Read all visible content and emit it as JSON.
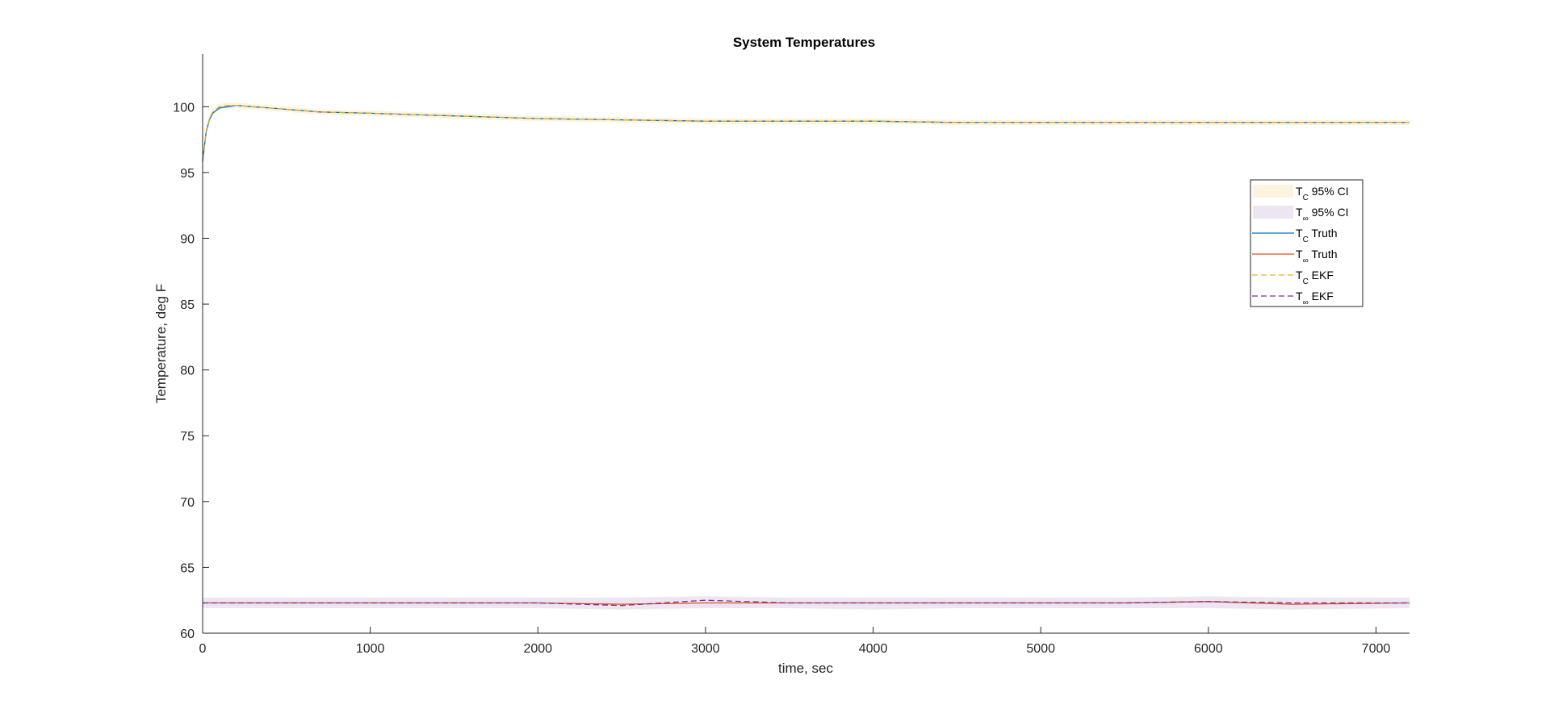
{
  "chart_data": {
    "type": "line",
    "title": "System Temperatures",
    "xlabel": "time, sec",
    "ylabel": "Temperature, deg F",
    "xlim": [
      0,
      7200
    ],
    "ylim": [
      60,
      104
    ],
    "xticks": [
      0,
      1000,
      2000,
      3000,
      4000,
      5000,
      6000,
      7000
    ],
    "yticks": [
      60,
      65,
      70,
      75,
      80,
      85,
      90,
      95,
      100
    ],
    "xtick_labels": [
      "0",
      "1000",
      "2000",
      "3000",
      "4000",
      "5000",
      "6000",
      "7000"
    ],
    "ytick_labels": [
      "60",
      "65",
      "70",
      "75",
      "80",
      "85",
      "90",
      "95",
      "100"
    ],
    "grid": false,
    "legend_position": "right",
    "x": [
      0,
      20,
      40,
      60,
      100,
      150,
      200,
      300,
      400,
      500,
      700,
      1000,
      1500,
      2000,
      2500,
      3000,
      3500,
      4000,
      4500,
      5000,
      5500,
      6000,
      6500,
      7200
    ],
    "series": [
      {
        "name": "95% CI",
        "legend_main": "T",
        "legend_sub": "C",
        "legend_rest": " 95% CI",
        "style": "band",
        "color": "#FDF3DF",
        "lower": [
          95.8,
          97.9,
          98.9,
          99.4,
          99.8,
          99.9,
          99.9,
          99.8,
          99.7,
          99.6,
          99.4,
          99.3,
          99.1,
          98.9,
          98.8,
          98.7,
          98.7,
          98.7,
          98.6,
          98.6,
          98.6,
          98.6,
          98.6,
          98.6
        ],
        "upper": [
          96.2,
          98.3,
          99.3,
          99.8,
          100.2,
          100.3,
          100.3,
          100.2,
          100.1,
          100.0,
          99.8,
          99.7,
          99.5,
          99.3,
          99.2,
          99.1,
          99.1,
          99.1,
          99.0,
          99.0,
          99.0,
          99.0,
          99.0,
          99.0
        ]
      },
      {
        "name": "95% CI",
        "legend_main": "T",
        "legend_sub": "∞",
        "legend_rest": " 95% CI",
        "style": "band",
        "color": "#EDE5F2",
        "lower": [
          61.9,
          61.9,
          61.9,
          61.9,
          61.9,
          61.9,
          61.9,
          61.9,
          61.9,
          61.9,
          61.9,
          61.9,
          61.9,
          61.9,
          61.8,
          61.9,
          61.9,
          61.8,
          61.9,
          61.9,
          61.9,
          61.9,
          61.8,
          61.9
        ],
        "upper": [
          62.7,
          62.7,
          62.7,
          62.7,
          62.7,
          62.7,
          62.7,
          62.7,
          62.7,
          62.7,
          62.7,
          62.7,
          62.7,
          62.7,
          62.7,
          62.8,
          62.7,
          62.7,
          62.7,
          62.7,
          62.7,
          62.8,
          62.7,
          62.7
        ]
      },
      {
        "name": "Truth",
        "legend_main": "T",
        "legend_sub": "C",
        "legend_rest": " Truth",
        "style": "solid",
        "color": "#0072BD",
        "values": [
          95.8,
          98.0,
          99.0,
          99.5,
          99.9,
          100.0,
          100.1,
          100.0,
          99.9,
          99.8,
          99.6,
          99.5,
          99.3,
          99.1,
          99.0,
          98.9,
          98.9,
          98.9,
          98.8,
          98.8,
          98.8,
          98.8,
          98.8,
          98.8
        ]
      },
      {
        "name": "Truth",
        "legend_main": "T",
        "legend_sub": "∞",
        "legend_rest": " Truth",
        "style": "solid",
        "color": "#D95319",
        "values": [
          62.3,
          62.3,
          62.3,
          62.3,
          62.3,
          62.3,
          62.3,
          62.3,
          62.3,
          62.3,
          62.3,
          62.3,
          62.3,
          62.3,
          62.2,
          62.3,
          62.3,
          62.3,
          62.3,
          62.3,
          62.3,
          62.4,
          62.2,
          62.3
        ]
      },
      {
        "name": "EKF",
        "legend_main": "T",
        "legend_sub": "C",
        "legend_rest": " EKF",
        "style": "dashed",
        "color": "#EDB120",
        "values": [
          96.0,
          98.1,
          99.1,
          99.6,
          100.0,
          100.1,
          100.1,
          100.0,
          99.9,
          99.8,
          99.6,
          99.5,
          99.3,
          99.1,
          99.0,
          98.9,
          98.9,
          98.9,
          98.8,
          98.8,
          98.8,
          98.8,
          98.8,
          98.8
        ]
      },
      {
        "name": "EKF",
        "legend_main": "T",
        "legend_sub": "∞",
        "legend_rest": " EKF",
        "style": "dashed",
        "color": "#7E2F8E",
        "values": [
          62.3,
          62.3,
          62.3,
          62.3,
          62.3,
          62.3,
          62.3,
          62.3,
          62.3,
          62.3,
          62.3,
          62.3,
          62.3,
          62.3,
          62.1,
          62.5,
          62.3,
          62.3,
          62.3,
          62.3,
          62.3,
          62.4,
          62.3,
          62.3
        ]
      }
    ]
  }
}
